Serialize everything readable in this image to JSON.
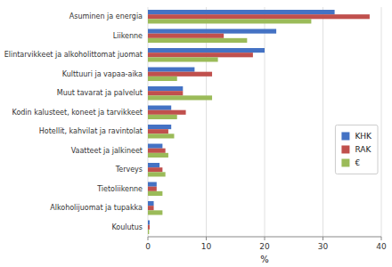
{
  "chart_data": {
    "type": "bar",
    "orientation": "horizontal",
    "categories": [
      "Asuminen ja energia",
      "Liikenne",
      "Elintarvikkeet ja alkoholittomat juomat",
      "Kulttuuri ja vapaa-aika",
      "Muut tavarat ja palvelut",
      "Kodin kalusteet, koneet ja tarvikkeet",
      "Hotellit, kahvilat ja ravintolat",
      "Vaatteet ja jalkineet",
      "Terveys",
      "Tietoliikenne",
      "Alkoholijuomat ja tupakka",
      "Koulutus"
    ],
    "series": [
      {
        "name": "KHK",
        "color": "#4472C4",
        "values": [
          32,
          22,
          20,
          8,
          6,
          4,
          4,
          2.5,
          2,
          1.5,
          1,
          0.3
        ]
      },
      {
        "name": "RAK",
        "color": "#C0504D",
        "values": [
          38,
          13,
          18,
          11,
          6,
          6.5,
          3.5,
          3,
          2.5,
          1.5,
          1,
          0.3
        ]
      },
      {
        "name": "€",
        "color": "#9BBB59",
        "values": [
          28,
          17,
          12,
          5,
          11,
          5,
          4.5,
          3.5,
          3,
          2.5,
          2.5,
          0.2
        ]
      }
    ],
    "xlabel": "%",
    "xlim": [
      0,
      40
    ],
    "xticks": [
      0,
      10,
      20,
      30,
      40
    ],
    "grid": true,
    "legend": "right"
  }
}
